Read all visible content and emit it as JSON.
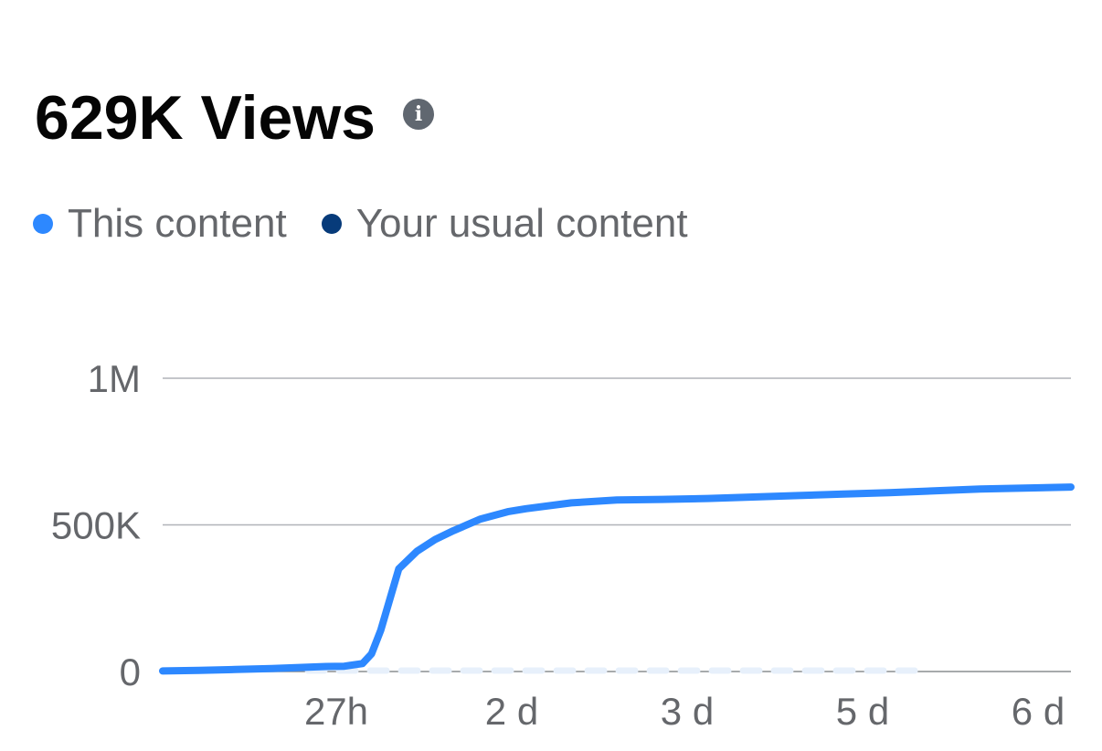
{
  "header": {
    "title": "629K Views",
    "info_icon": "info-icon"
  },
  "legend": [
    {
      "label": "This content",
      "color": "#2d88ff"
    },
    {
      "label": "Your usual content",
      "color": "#073b7a"
    }
  ],
  "chart_data": {
    "type": "line",
    "title": "629K Views",
    "y_ticks": [
      {
        "label": "1M",
        "value": 1000000
      },
      {
        "label": "500K",
        "value": 500000
      },
      {
        "label": "0",
        "value": 0
      }
    ],
    "ylim": [
      0,
      1000000
    ],
    "x_ticks": [
      "27h",
      "2 d",
      "3 d",
      "5 d",
      "6 d"
    ],
    "grid": true,
    "legend_position": "top-left",
    "series": [
      {
        "name": "This content",
        "color": "#2d88ff",
        "x": [
          0,
          4,
          8,
          12,
          16,
          18,
          20,
          22,
          23,
          24,
          26,
          28,
          30,
          32,
          35,
          38,
          40,
          45,
          50,
          55,
          60,
          65,
          70,
          75,
          80,
          90,
          100
        ],
        "values": [
          2000,
          4000,
          7000,
          10000,
          15000,
          17000,
          18000,
          27000,
          60000,
          140000,
          350000,
          410000,
          450000,
          480000,
          520000,
          545000,
          555000,
          575000,
          585000,
          587000,
          590000,
          595000,
          600000,
          605000,
          610000,
          622000,
          629000
        ]
      },
      {
        "name": "Your usual content",
        "color": "#e7f0fb",
        "x": [
          16,
          83
        ],
        "values": [
          0,
          0
        ]
      }
    ]
  }
}
